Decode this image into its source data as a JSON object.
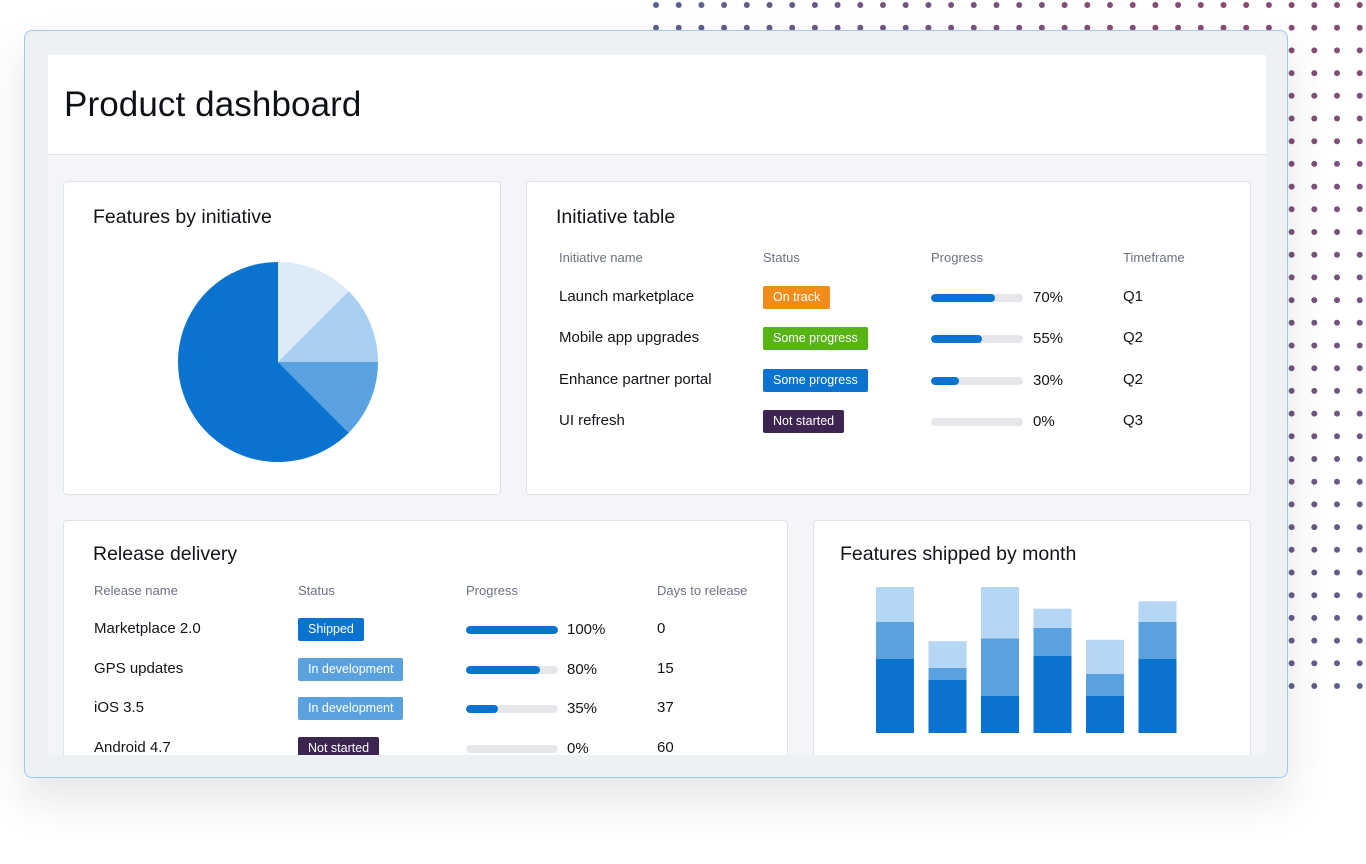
{
  "page": {
    "title": "Product dashboard"
  },
  "colors": {
    "accent": "#0a73cf",
    "pie": [
      "#0a73cf",
      "#5aa1df",
      "#a9cff2",
      "#ddebf9"
    ],
    "bars": [
      "#0a73cf",
      "#5aa1df",
      "#b5d6f4"
    ],
    "track": "#e5e7eb"
  },
  "features_by_initiative": {
    "title": "Features by initiative",
    "chart_data": {
      "type": "pie",
      "slices": [
        {
          "value": 62.5
        },
        {
          "value": 12.5
        },
        {
          "value": 12.5
        },
        {
          "value": 12.5
        }
      ]
    }
  },
  "initiative_table": {
    "title": "Initiative table",
    "columns": [
      "Initiative name",
      "Status",
      "Progress",
      "Timeframe"
    ],
    "rows": [
      {
        "name": "Launch marketplace",
        "status": "On track",
        "status_color": "#f28c1a",
        "progress": 70,
        "progress_label": "70%",
        "timeframe": "Q1"
      },
      {
        "name": "Mobile app upgrades",
        "status": "Some progress",
        "status_color": "#57b414",
        "progress": 55,
        "progress_label": "55%",
        "timeframe": "Q2"
      },
      {
        "name": "Enhance partner portal",
        "status": "Some progress",
        "status_color": "#0a73cf",
        "progress": 30,
        "progress_label": "30%",
        "timeframe": "Q2"
      },
      {
        "name": "UI refresh",
        "status": "Not started",
        "status_color": "#3d2552",
        "progress": 0,
        "progress_label": "0%",
        "timeframe": "Q3"
      }
    ]
  },
  "release_delivery": {
    "title": "Release delivery",
    "columns": [
      "Release name",
      "Status",
      "Progress",
      "Days to release"
    ],
    "rows": [
      {
        "name": "Marketplace 2.0",
        "status": "Shipped",
        "status_color": "#0a73cf",
        "progress": 100,
        "progress_label": "100%",
        "days": "0"
      },
      {
        "name": "GPS updates",
        "status": "In development",
        "status_color": "#5aa1df",
        "progress": 80,
        "progress_label": "80%",
        "days": "15"
      },
      {
        "name": "iOS 3.5",
        "status": "In development",
        "status_color": "#5aa1df",
        "progress": 35,
        "progress_label": "35%",
        "days": "37"
      },
      {
        "name": "Android 4.7",
        "status": "Not started",
        "status_color": "#3d2552",
        "progress": 0,
        "progress_label": "0%",
        "days": "60"
      }
    ]
  },
  "features_shipped": {
    "title": "Features shipped by month",
    "chart_data": {
      "type": "bar",
      "stacked": true,
      "ylim": [
        0,
        10
      ],
      "series": [
        {
          "values": [
            5,
            3.6,
            2.5,
            5.2,
            2.5,
            5
          ]
        },
        {
          "values": [
            2.5,
            0.8,
            3.9,
            1.9,
            1.5,
            2.5
          ]
        },
        {
          "values": [
            2.5,
            1.8,
            3.6,
            1.3,
            2.3,
            1.4
          ]
        }
      ]
    }
  }
}
